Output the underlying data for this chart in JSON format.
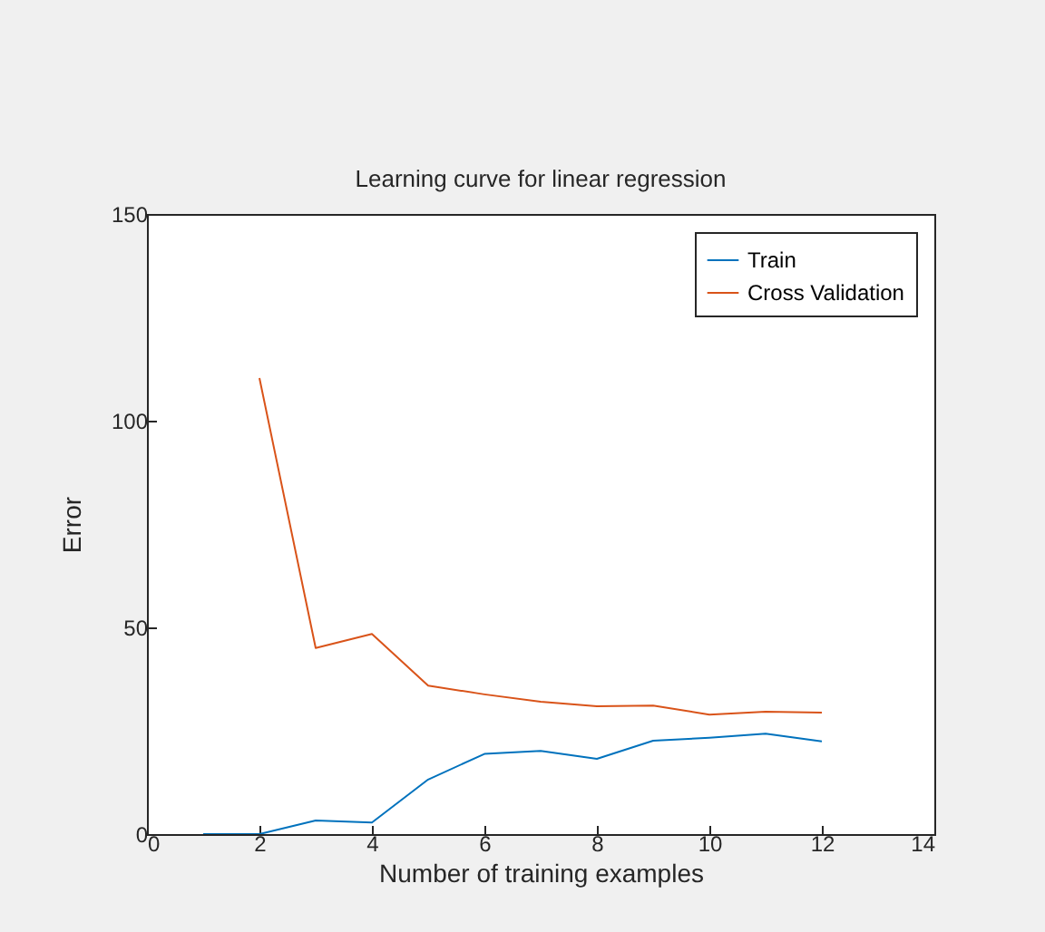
{
  "chart_data": {
    "type": "line",
    "title": "Learning curve for linear regression",
    "xlabel": "Number of training examples",
    "ylabel": "Error",
    "x": [
      1,
      2,
      3,
      4,
      5,
      6,
      7,
      8,
      9,
      10,
      11,
      12
    ],
    "series": [
      {
        "name": "Train",
        "color": "#0072bd",
        "values": [
          0,
          0,
          3.3,
          2.8,
          13.2,
          19.4,
          20.1,
          18.2,
          22.6,
          23.3,
          24.3,
          22.4
        ]
      },
      {
        "name": "Cross Validation",
        "color": "#d95319",
        "values": [
          null,
          110.3,
          45.0,
          48.4,
          35.9,
          33.8,
          32.0,
          30.9,
          31.1,
          28.9,
          29.6,
          29.4
        ]
      }
    ],
    "xlim": [
      0,
      14
    ],
    "xticks": [
      0,
      2,
      4,
      6,
      8,
      10,
      12,
      14
    ],
    "ylim": [
      0,
      150
    ],
    "yticks": [
      0,
      50,
      100,
      150
    ],
    "grid": false,
    "legend": "top right"
  }
}
